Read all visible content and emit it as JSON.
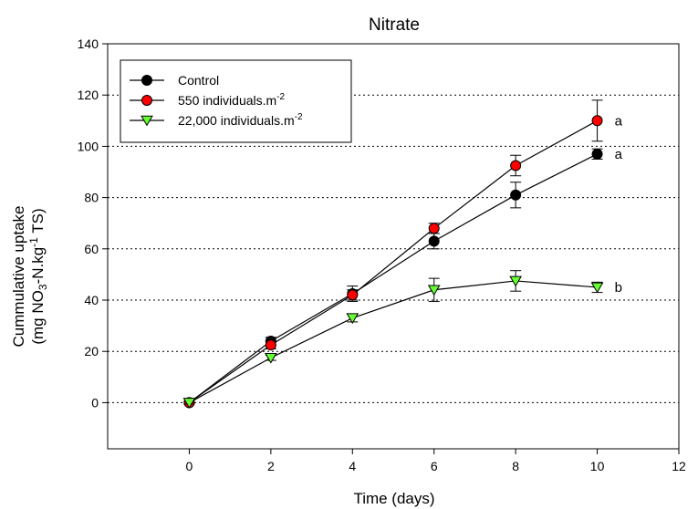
{
  "chart_data": {
    "type": "line",
    "title": "Nitrate",
    "xlabel": "Time (days)",
    "ylabel": {
      "line1": "Cummulative uptake",
      "line2": {
        "a": "(mg NO",
        "sub": "3",
        "b": "-N.kg",
        "sup": "-1",
        "c": " TS)"
      }
    },
    "xlim": [
      -2,
      12
    ],
    "ylim": [
      -18,
      140
    ],
    "xticks": [
      0,
      2,
      4,
      6,
      8,
      10,
      12
    ],
    "yticks": [
      0,
      20,
      40,
      60,
      80,
      100,
      120,
      140
    ],
    "grid": {
      "y": true,
      "style": "dotted"
    },
    "legend_position": "top-left",
    "series": [
      {
        "name": "Control",
        "marker": "circle",
        "color": "#000000",
        "x": [
          0,
          2,
          4,
          6,
          8,
          10
        ],
        "y": [
          0,
          24,
          42.5,
          63,
          81,
          97
        ],
        "err": [
          0.5,
          1.5,
          3,
          3,
          5,
          2
        ]
      },
      {
        "name": {
          "text": "550 individuals.m",
          "sup": "-2"
        },
        "marker": "circle",
        "color": "#ff0000",
        "x": [
          0,
          2,
          4,
          6,
          8,
          10
        ],
        "y": [
          0,
          22.5,
          42,
          68,
          92.5,
          110
        ],
        "err": [
          0.5,
          1.5,
          2,
          2,
          4,
          8
        ]
      },
      {
        "name": {
          "text": "22,000 individuals.m",
          "sup": "-2"
        },
        "marker": "triangle-down",
        "color": "#66ff33",
        "x": [
          0,
          2,
          4,
          6,
          8,
          10
        ],
        "y": [
          0,
          17.5,
          33,
          44,
          47.5,
          45
        ],
        "err": [
          0.5,
          1,
          1.5,
          4.5,
          4,
          2
        ]
      }
    ],
    "annotations": [
      {
        "text": "a",
        "x": 10,
        "y": 110
      },
      {
        "text": "a",
        "x": 10,
        "y": 97
      },
      {
        "text": "b",
        "x": 10,
        "y": 45
      }
    ]
  }
}
